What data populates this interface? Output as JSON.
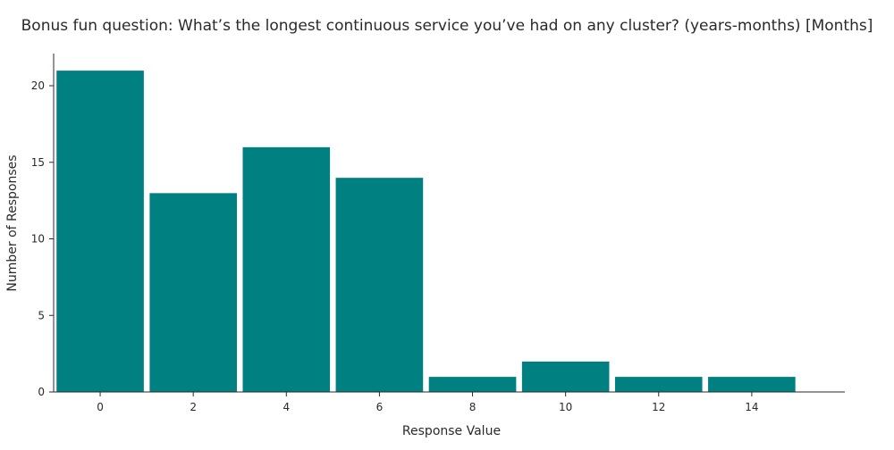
{
  "chart_data": {
    "type": "bar",
    "title": "Bonus fun question: What’s the longest continuous service you’ve had on any cluster? (years-months) [Months]",
    "xlabel": "Response Value",
    "ylabel": "Number of Responses",
    "x": [
      0,
      2,
      4,
      6,
      8,
      10,
      12,
      14
    ],
    "values": [
      21,
      13,
      16,
      14,
      1,
      2,
      1,
      1
    ],
    "bin_width": 2,
    "xlim": [
      -1,
      16
    ],
    "ylim": [
      0,
      22.1
    ],
    "x_ticks": [
      0,
      2,
      4,
      6,
      8,
      10,
      12,
      14
    ],
    "y_ticks": [
      0,
      5,
      10,
      15,
      20
    ],
    "bar_color": "#008080",
    "grid": false,
    "legend": "none"
  }
}
